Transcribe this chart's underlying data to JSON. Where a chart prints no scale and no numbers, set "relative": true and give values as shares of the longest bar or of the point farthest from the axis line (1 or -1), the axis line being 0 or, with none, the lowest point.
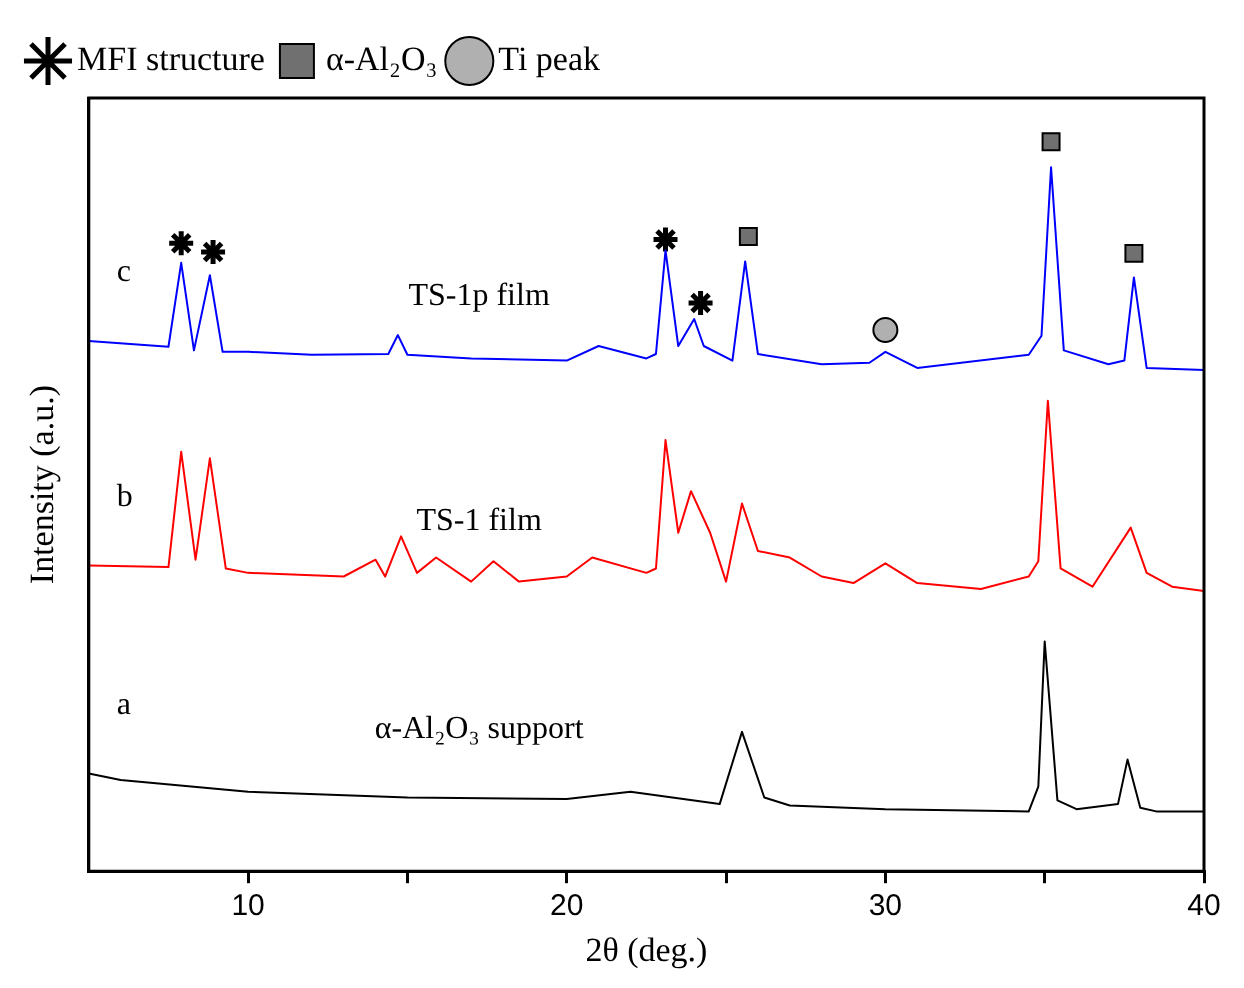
{
  "chart_data": {
    "type": "line",
    "relative": true,
    "xlabel": "2θ (deg.)",
    "ylabel": "Intensity (a.u.)",
    "xlim": [
      5,
      40
    ],
    "xticks": [
      10,
      {
        "value": 15,
        "label": null
      },
      20,
      {
        "value": 25,
        "label": null
      },
      30,
      {
        "value": 35,
        "label": null
      },
      40
    ],
    "legend": "top left",
    "grid": false,
    "series": [
      {
        "color": "#0000ff",
        "marker": "none",
        "x": [
          5,
          7.5,
          7.9,
          8.3,
          8.8,
          9.2,
          10,
          12,
          14.4,
          14.7,
          15,
          17,
          20,
          21,
          22.5,
          22.8,
          23.1,
          23.5,
          24,
          24.3,
          25.2,
          25.6,
          26,
          28,
          29.5,
          30,
          31,
          34.5,
          34.9,
          35.2,
          35.6,
          37,
          37.5,
          37.8,
          38.2,
          40
        ],
        "values": [
          0.727,
          0.719,
          0.834,
          0.714,
          0.817,
          0.712,
          0.712,
          0.708,
          0.709,
          0.735,
          0.708,
          0.703,
          0.7,
          0.72,
          0.703,
          0.709,
          0.851,
          0.72,
          0.757,
          0.72,
          0.7,
          0.836,
          0.709,
          0.695,
          0.697,
          0.712,
          0.69,
          0.708,
          0.734,
          0.965,
          0.714,
          0.695,
          0.7,
          0.814,
          0.69,
          0.687
        ]
      },
      {
        "color": "#ff0000",
        "marker": "none",
        "x": [
          5,
          7.5,
          7.9,
          8.35,
          8.8,
          9.3,
          10,
          13,
          14,
          14.3,
          14.8,
          15.3,
          15.9,
          17,
          17.7,
          18.5,
          20,
          20.8,
          22.5,
          22.8,
          23.1,
          23.5,
          23.9,
          24.5,
          25,
          25.5,
          26,
          27,
          28,
          29,
          30,
          31,
          33,
          34.5,
          34.8,
          35.1,
          35.5,
          36.5,
          37.7,
          38.2,
          39,
          40
        ],
        "values": [
          0.419,
          0.417,
          0.575,
          0.427,
          0.566,
          0.415,
          0.409,
          0.404,
          0.427,
          0.404,
          0.459,
          0.409,
          0.43,
          0.397,
          0.425,
          0.397,
          0.404,
          0.43,
          0.409,
          0.415,
          0.591,
          0.464,
          0.521,
          0.464,
          0.397,
          0.504,
          0.439,
          0.43,
          0.404,
          0.395,
          0.422,
          0.395,
          0.387,
          0.404,
          0.425,
          0.645,
          0.415,
          0.39,
          0.471,
          0.409,
          0.39,
          0.384
        ]
      },
      {
        "color": "#000000",
        "marker": "none",
        "x": [
          5,
          6,
          10,
          15,
          20,
          22,
          24.8,
          25.5,
          26.2,
          27,
          30,
          34.5,
          34.8,
          35,
          35.4,
          36,
          37.3,
          37.6,
          38,
          38.5,
          40
        ],
        "values": [
          0.134,
          0.125,
          0.109,
          0.101,
          0.099,
          0.109,
          0.092,
          0.191,
          0.101,
          0.09,
          0.085,
          0.082,
          0.116,
          0.315,
          0.097,
          0.085,
          0.092,
          0.153,
          0.087,
          0.082,
          0.082
        ]
      },
      {
        "type": "scatter",
        "name": "MFI structure",
        "color": "#000000",
        "marker": "cross",
        "x": [
          7.9,
          8.9,
          23.1,
          24.2
        ],
        "values": [
          0.861,
          0.849,
          0.866,
          0.779
        ]
      },
      {
        "type": "scatter",
        "name": "α-Al₂O₃",
        "color": "#707070",
        "marker": "square",
        "x": [
          25.7,
          35.2,
          37.8
        ],
        "values": [
          0.87,
          1,
          0.847
        ]
      },
      {
        "type": "scatter",
        "name": "Ti peak",
        "color": "#b0b0b0",
        "marker": "circle",
        "x": [
          30
        ],
        "values": [
          0.742
        ]
      }
    ],
    "annotations": [
      "c",
      "TS-1p film",
      "b",
      "TS-1 film",
      "a",
      "α-Al₂O₃ support"
    ]
  }
}
